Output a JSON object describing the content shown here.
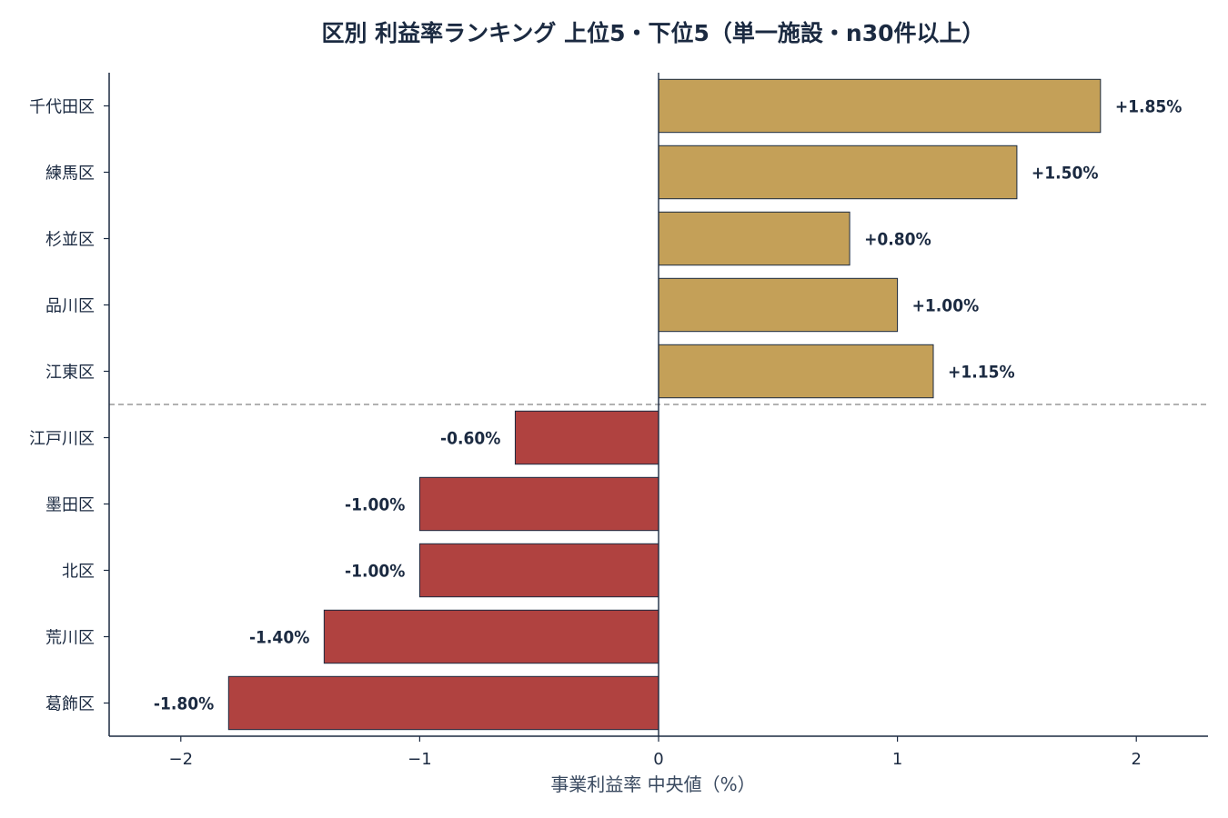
{
  "chart_data": {
    "type": "bar",
    "orientation": "horizontal",
    "title": "区別 利益率ランキング 上位5・下位5（単一施設・n30件以上）",
    "xlabel": "事業利益率 中央値（%）",
    "ylabel": "",
    "xlim": [
      -2.3,
      2.3
    ],
    "xticks": [
      -2,
      -1,
      0,
      1,
      2
    ],
    "xtick_labels": [
      "−2",
      "−1",
      "0",
      "1",
      "2"
    ],
    "grid": false,
    "separator": "dashed line between top 5 and bottom 5",
    "categories": [
      "千代田区",
      "練馬区",
      "杉並区",
      "品川区",
      "江東区",
      "江戸川区",
      "墨田区",
      "北区",
      "荒川区",
      "葛飾区"
    ],
    "values": [
      1.85,
      1.5,
      0.8,
      1.0,
      1.15,
      -0.6,
      -1.0,
      -1.0,
      -1.4,
      -1.8
    ],
    "value_labels": [
      "+1.85%",
      "+1.50%",
      "+0.80%",
      "+1.00%",
      "+1.15%",
      "-0.60%",
      "-1.00%",
      "-1.00%",
      "-1.40%",
      "-1.80%"
    ],
    "colors": {
      "positive": "#c4a058",
      "negative": "#b04240",
      "edge": "#1b2a41",
      "text": "#1b2a41",
      "separator": "#999999"
    }
  }
}
